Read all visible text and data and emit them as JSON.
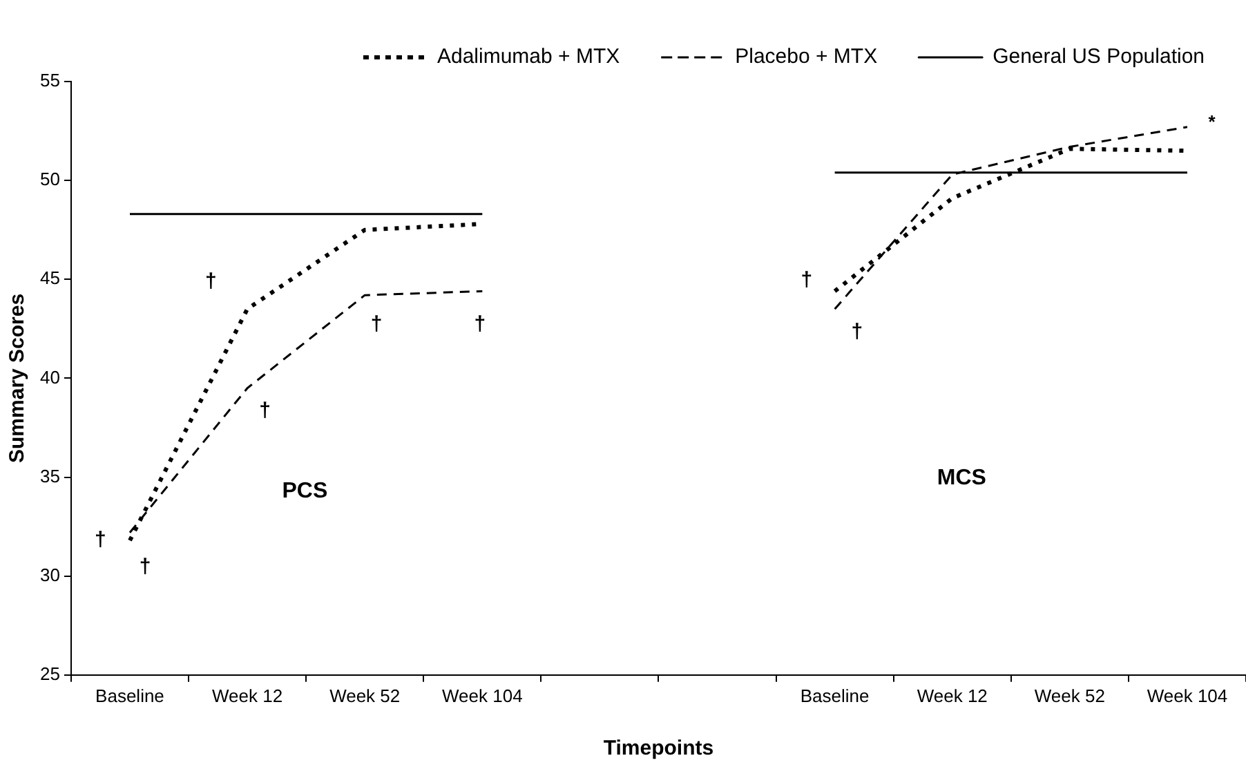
{
  "chart_data": {
    "type": "line",
    "xlabel": "Timepoints",
    "ylabel": "Summary Scores",
    "categories": [
      "Baseline",
      "Week 12",
      "Week 52",
      "Week 104",
      null,
      null,
      "Baseline",
      "Week 12",
      "Week 52",
      "Week 104"
    ],
    "series": [
      {
        "name": "Adalimumab + MTX",
        "color": "#000000",
        "line_style": "dotted",
        "values": [
          31.8,
          43.5,
          47.5,
          47.8,
          null,
          null,
          44.4,
          49.1,
          51.6,
          51.5
        ]
      },
      {
        "name": "Placebo + MTX",
        "color": "#000000",
        "line_style": "dashed",
        "values": [
          32.2,
          39.5,
          44.2,
          44.4,
          null,
          null,
          43.5,
          50.3,
          51.7,
          52.7
        ]
      },
      {
        "name": "General US Population",
        "color": "#000000",
        "line_style": "solid",
        "values": [
          48.3,
          48.3,
          48.3,
          48.3,
          null,
          null,
          50.4,
          50.4,
          50.4,
          50.4
        ]
      }
    ],
    "ylim": [
      25,
      55
    ],
    "yticks": [
      25,
      30,
      35,
      40,
      45,
      50,
      55
    ],
    "grid": false,
    "legend": "top",
    "marker": "none",
    "annotations": [
      "PCS",
      "MCS",
      "†",
      "†",
      "†",
      "†",
      "†",
      "†",
      "†",
      "†",
      "*"
    ]
  }
}
